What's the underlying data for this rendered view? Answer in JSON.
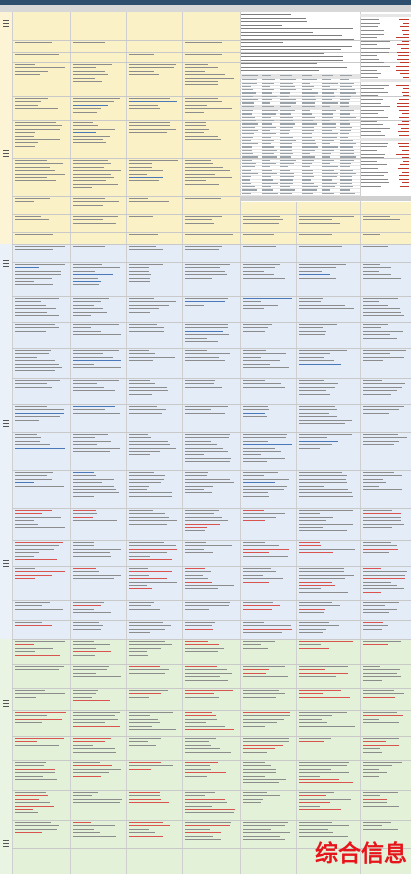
{
  "watermark": {
    "text": "综合信息"
  },
  "colors": {
    "band_yellow": "#fbf1c7",
    "band_blue": "#e3ecf7",
    "band_green": "#e3f1d9",
    "red_text": "#c0392b",
    "header": "#2f4f6f"
  },
  "bands": [
    {
      "name": "yellow",
      "from": 0.0,
      "to": 0.275
    },
    {
      "name": "blue",
      "from": 0.275,
      "to": 0.73
    },
    {
      "name": "green",
      "from": 0.73,
      "to": 1.0
    }
  ]
}
